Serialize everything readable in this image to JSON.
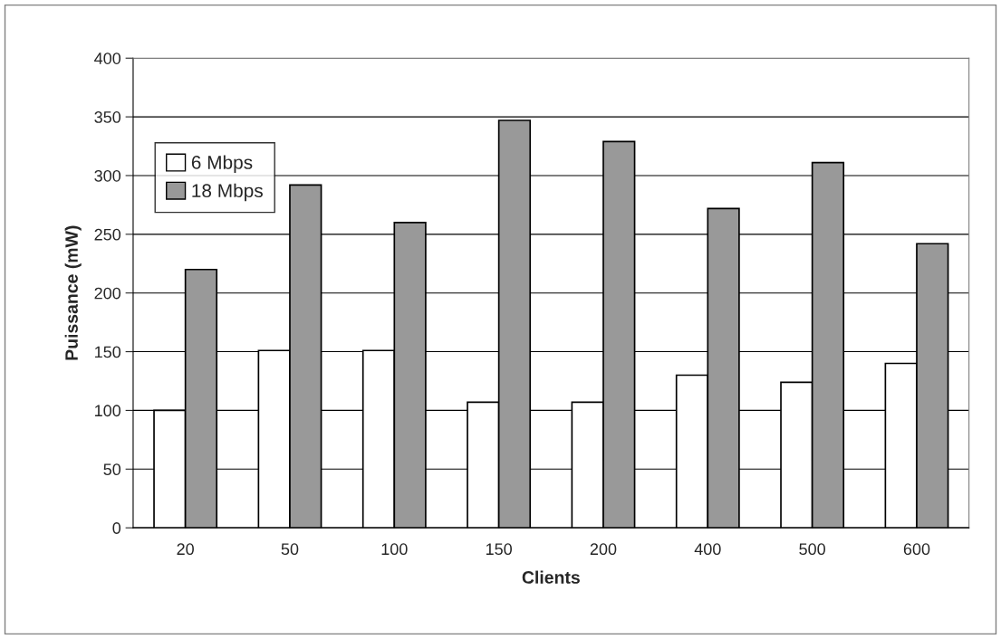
{
  "chart_data": {
    "type": "bar",
    "xlabel": "Clients",
    "ylabel": "Puissance (mW)",
    "categories": [
      "20",
      "50",
      "100",
      "150",
      "200",
      "400",
      "500",
      "600"
    ],
    "series": [
      {
        "name": "6 Mbps",
        "color": "#ffffff",
        "values": [
          100,
          151,
          151,
          107,
          107,
          130,
          124,
          140
        ]
      },
      {
        "name": "18 Mbps",
        "color": "#999999",
        "values": [
          220,
          292,
          260,
          347,
          329,
          272,
          311,
          242
        ]
      }
    ],
    "ylim": [
      0,
      400
    ],
    "yticks": [
      0,
      50,
      100,
      150,
      200,
      250,
      300,
      350,
      400
    ],
    "grid": "y",
    "legend": "top left"
  }
}
